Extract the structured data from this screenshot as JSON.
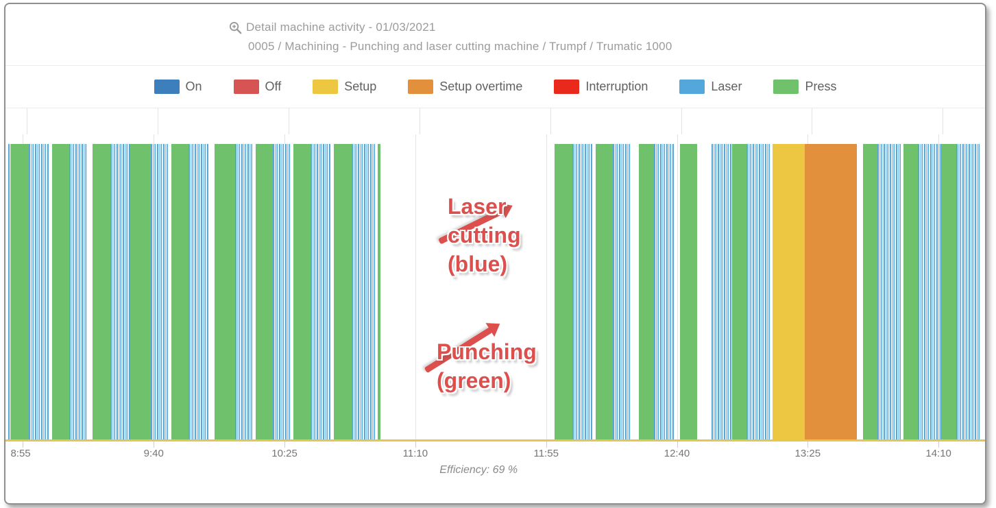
{
  "header": {
    "title": "Detail machine activity - 01/03/2021",
    "subtitle": "0005 / Machining - Punching and laser cutting machine / Trumpf / Trumatic 1000",
    "title_icon": "zoom-in-icon"
  },
  "legend": {
    "items": [
      {
        "label": "On",
        "color": "#3d7ebd"
      },
      {
        "label": "Off",
        "color": "#d65454"
      },
      {
        "label": "Setup",
        "color": "#edc742"
      },
      {
        "label": "Setup overtime",
        "color": "#e2903b"
      },
      {
        "label": "Interruption",
        "color": "#e8291c"
      },
      {
        "label": "Laser",
        "color": "#54a7da"
      },
      {
        "label": "Press",
        "color": "#6fc16c"
      }
    ]
  },
  "chart_data": {
    "type": "timeline",
    "title": "Detail machine activity - 01/03/2021",
    "date": "01/03/2021",
    "machine": "0005 / Machining - Punching and laser cutting machine / Trumpf / Trumatic 1000",
    "efficiency_pct": 69,
    "efficiency_text": "Efficiency: 69 %",
    "x_axis": {
      "start": "8:49",
      "end": "14:26",
      "ticks": [
        "8:55",
        "9:40",
        "10:25",
        "11:10",
        "11:55",
        "12:40",
        "13:25",
        "14:10"
      ]
    },
    "colors": {
      "press": "#6fc16c",
      "laser": "#54a7da",
      "setup": "#edc742",
      "setup_overtime": "#e2903b"
    },
    "segments": [
      {
        "start": "8:50",
        "end": "8:51",
        "type": "laser"
      },
      {
        "start": "8:51",
        "end": "8:57",
        "type": "press"
      },
      {
        "start": "8:57",
        "end": "9:04",
        "type": "laser"
      },
      {
        "start": "9:05",
        "end": "9:11",
        "type": "press"
      },
      {
        "start": "9:11",
        "end": "9:17",
        "type": "laser"
      },
      {
        "start": "9:19",
        "end": "9:25",
        "type": "press"
      },
      {
        "start": "9:25",
        "end": "9:32",
        "type": "laser"
      },
      {
        "start": "9:32",
        "end": "9:39",
        "type": "press"
      },
      {
        "start": "9:39",
        "end": "9:45",
        "type": "laser"
      },
      {
        "start": "9:46",
        "end": "9:52",
        "type": "press"
      },
      {
        "start": "9:52",
        "end": "9:59",
        "type": "laser"
      },
      {
        "start": "10:01",
        "end": "10:08",
        "type": "press"
      },
      {
        "start": "10:08",
        "end": "10:14",
        "type": "laser"
      },
      {
        "start": "10:15",
        "end": "10:21",
        "type": "press"
      },
      {
        "start": "10:21",
        "end": "10:27",
        "type": "laser"
      },
      {
        "start": "10:28",
        "end": "10:34",
        "type": "press"
      },
      {
        "start": "10:34",
        "end": "10:41",
        "type": "laser"
      },
      {
        "start": "10:42",
        "end": "10:48",
        "type": "press"
      },
      {
        "start": "10:48",
        "end": "10:56",
        "type": "laser"
      },
      {
        "start": "10:57",
        "end": "10:58",
        "type": "press"
      },
      {
        "start": "11:58",
        "end": "12:04",
        "type": "press"
      },
      {
        "start": "12:04",
        "end": "12:11",
        "type": "laser"
      },
      {
        "start": "12:12",
        "end": "12:18",
        "type": "press"
      },
      {
        "start": "12:18",
        "end": "12:24",
        "type": "laser"
      },
      {
        "start": "12:27",
        "end": "12:32",
        "type": "press"
      },
      {
        "start": "12:32",
        "end": "12:39",
        "type": "laser"
      },
      {
        "start": "12:41",
        "end": "12:47",
        "type": "press"
      },
      {
        "start": "12:52",
        "end": "12:59",
        "type": "laser"
      },
      {
        "start": "12:59",
        "end": "13:04",
        "type": "press"
      },
      {
        "start": "13:04",
        "end": "13:12",
        "type": "laser"
      },
      {
        "start": "13:13",
        "end": "13:24",
        "type": "setup"
      },
      {
        "start": "13:24",
        "end": "13:42",
        "type": "setup_overtime"
      },
      {
        "start": "13:44",
        "end": "13:49",
        "type": "press"
      },
      {
        "start": "13:49",
        "end": "13:57",
        "type": "laser"
      },
      {
        "start": "13:58",
        "end": "14:03",
        "type": "press"
      },
      {
        "start": "14:03",
        "end": "14:11",
        "type": "laser"
      },
      {
        "start": "14:11",
        "end": "14:16",
        "type": "press"
      },
      {
        "start": "14:16",
        "end": "14:24",
        "type": "laser"
      }
    ],
    "annotations": [
      {
        "lines": [
          "Laser",
          "cutting",
          "(blue)"
        ],
        "color": "#dd4f4c",
        "points_to": "laser"
      },
      {
        "lines": [
          "Punching",
          "(green)"
        ],
        "color": "#dd4f4c",
        "points_to": "press"
      }
    ]
  }
}
